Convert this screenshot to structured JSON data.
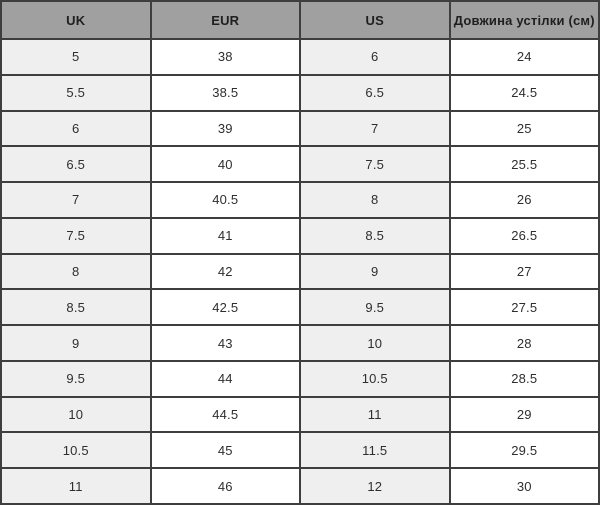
{
  "colors": {
    "header_bg": "#a0a0a0",
    "border": "#3e3e3e",
    "column_stripe": "#efefef",
    "column_plain": "#ffffff",
    "text": "#2e2e2e"
  },
  "chart_data": {
    "type": "table",
    "title": "",
    "columns": [
      "UK",
      "EUR",
      "US",
      "Довжина устілки (см)"
    ],
    "rows": [
      [
        "5",
        "38",
        "6",
        "24"
      ],
      [
        "5.5",
        "38.5",
        "6.5",
        "24.5"
      ],
      [
        "6",
        "39",
        "7",
        "25"
      ],
      [
        "6.5",
        "40",
        "7.5",
        "25.5"
      ],
      [
        "7",
        "40.5",
        "8",
        "26"
      ],
      [
        "7.5",
        "41",
        "8.5",
        "26.5"
      ],
      [
        "8",
        "42",
        "9",
        "27"
      ],
      [
        "8.5",
        "42.5",
        "9.5",
        "27.5"
      ],
      [
        "9",
        "43",
        "10",
        "28"
      ],
      [
        "9.5",
        "44",
        "10.5",
        "28.5"
      ],
      [
        "10",
        "44.5",
        "11",
        "29"
      ],
      [
        "10.5",
        "45",
        "11.5",
        "29.5"
      ],
      [
        "11",
        "46",
        "12",
        "30"
      ]
    ]
  }
}
